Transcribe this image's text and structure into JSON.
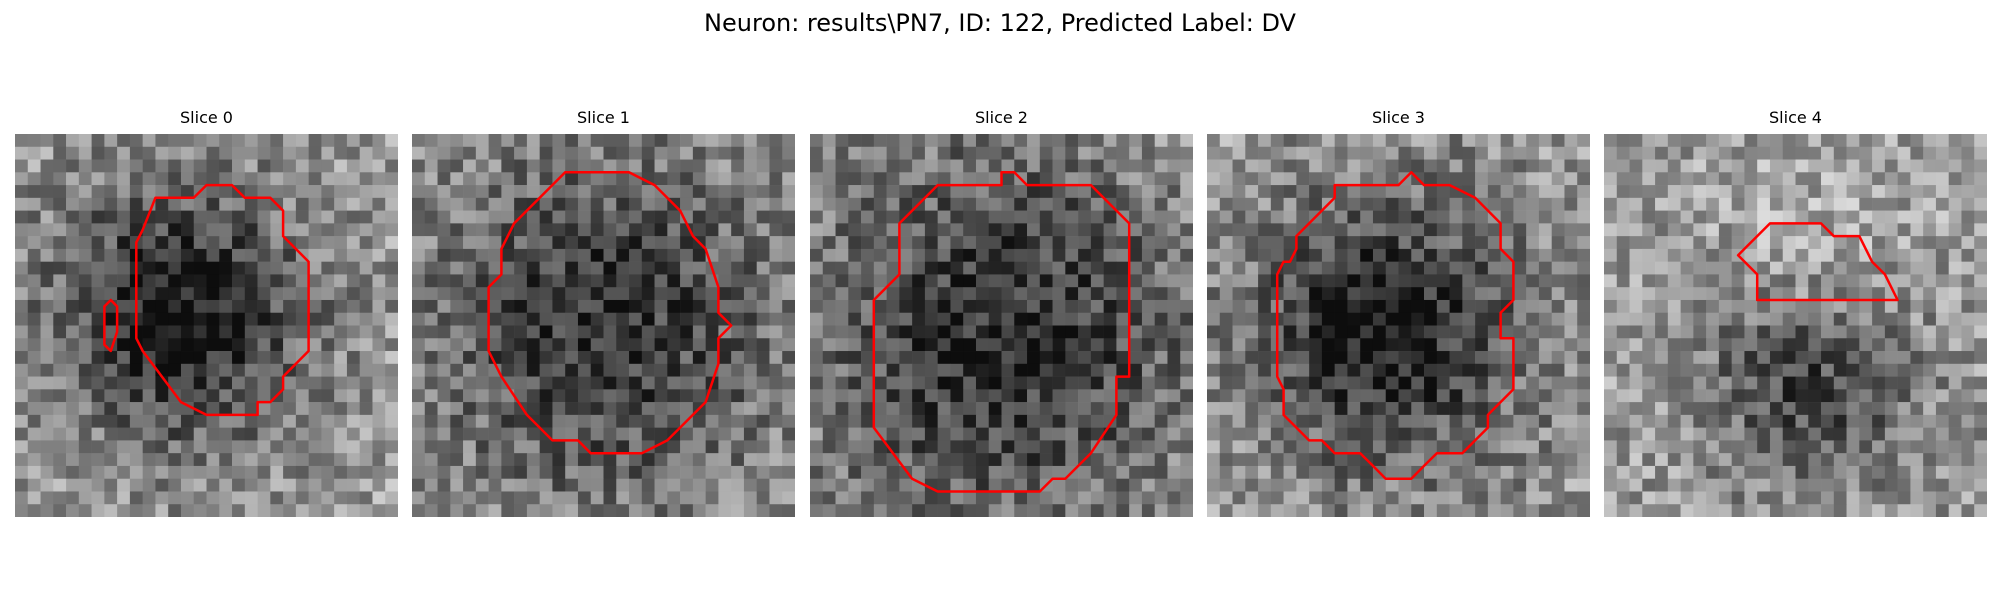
{
  "figure": {
    "title": "Neuron: results\\PN7, ID: 122, Predicted Label: DV"
  },
  "panels": [
    {
      "title": "Slice 0",
      "contour_color": "#ff0000"
    },
    {
      "title": "Slice 1",
      "contour_color": "#ff0000"
    },
    {
      "title": "Slice 2",
      "contour_color": "#ff0000"
    },
    {
      "title": "Slice 3",
      "contour_color": "#ff0000"
    },
    {
      "title": "Slice 4",
      "contour_color": "#ff0000"
    }
  ]
}
